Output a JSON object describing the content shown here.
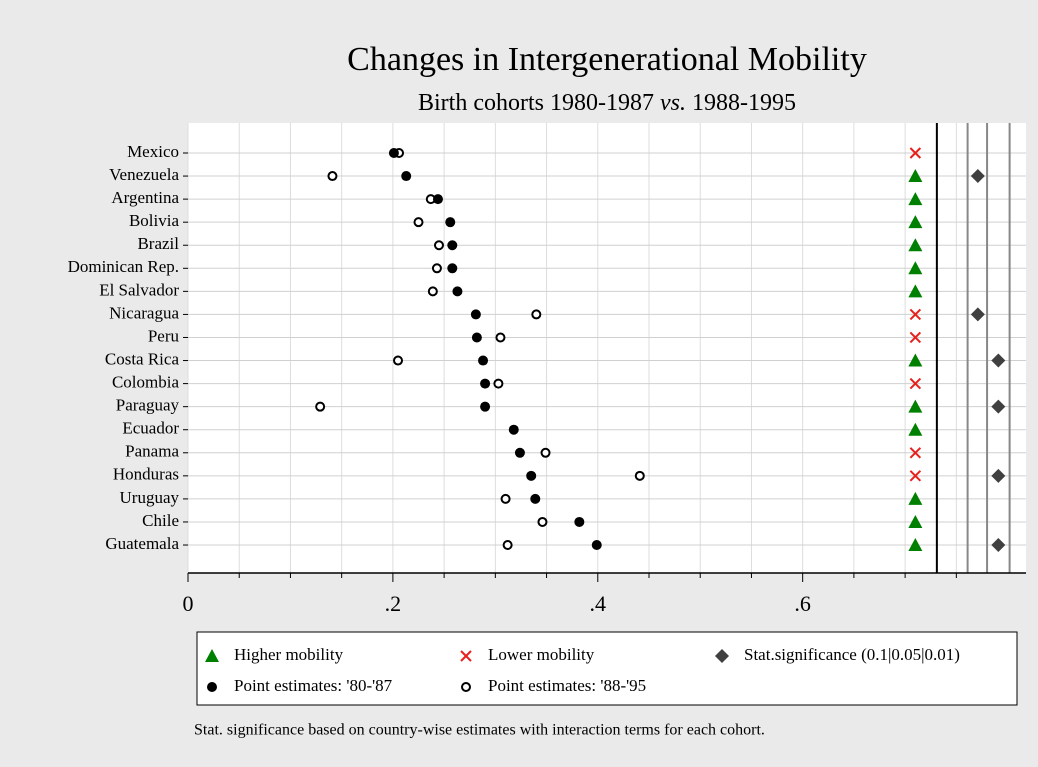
{
  "chart_data": {
    "type": "dot",
    "title": "Changes in Intergenerational Mobility",
    "subtitle": [
      "Birth cohorts 1980-1987 ",
      "vs.",
      " 1988-1995"
    ],
    "note": "Stat. significance based on country-wise estimates with interaction terms for each cohort.",
    "categories": [
      "Mexico",
      "Venezuela",
      "Argentina",
      "Bolivia",
      "Brazil",
      "Dominican Rep.",
      "El Salvador",
      "Nicaragua",
      "Peru",
      "Costa Rica",
      "Colombia",
      "Paraguay",
      "Ecuador",
      "Panama",
      "Honduras",
      "Uruguay",
      "Chile",
      "Guatemala"
    ],
    "series": [
      {
        "name": "Higher mobility",
        "color": "#008000",
        "symbol": "triangle",
        "values": [
          null,
          0.71,
          0.71,
          0.71,
          0.71,
          0.71,
          0.71,
          null,
          null,
          0.71,
          null,
          0.71,
          0.71,
          null,
          null,
          0.71,
          0.71,
          0.71
        ]
      },
      {
        "name": "Lower mobility",
        "color": "#e8201c",
        "symbol": "cross",
        "values": [
          0.71,
          null,
          null,
          null,
          null,
          null,
          null,
          0.71,
          0.71,
          null,
          0.71,
          null,
          null,
          0.71,
          0.71,
          null,
          null,
          null
        ]
      },
      {
        "name": "Stat.significance (0.1|0.05|0.01)",
        "color": "#404040",
        "symbol": "diamond",
        "values": [
          null,
          0.771,
          null,
          null,
          null,
          null,
          null,
          0.771,
          null,
          0.791,
          null,
          0.791,
          null,
          null,
          0.791,
          null,
          null,
          0.791
        ]
      },
      {
        "name": "Point estimates: '80-'87",
        "color": "#000000",
        "symbol": "dot",
        "values": [
          0.201,
          0.213,
          0.244,
          0.256,
          0.258,
          0.258,
          0.263,
          0.281,
          0.282,
          0.288,
          0.29,
          0.29,
          0.318,
          0.324,
          0.335,
          0.339,
          0.382,
          0.399
        ]
      },
      {
        "name": "Point estimates: '88-'95",
        "color": "#000000",
        "symbol": "ring",
        "values": [
          0.206,
          0.141,
          0.237,
          0.225,
          0.245,
          0.243,
          0.239,
          0.34,
          0.305,
          0.205,
          0.303,
          0.129,
          null,
          0.349,
          0.441,
          0.31,
          0.346,
          0.312
        ]
      }
    ],
    "xlim": [
      0,
      0.818
    ],
    "xticks": [
      0,
      {
        "value": 0.2,
        "label": ".2"
      },
      {
        "value": 0.4,
        "label": ".4"
      },
      {
        "value": 0.6,
        "label": ".6"
      }
    ],
    "xminor": [
      0.05,
      0.1,
      0.15,
      0.25,
      0.3,
      0.35,
      0.45,
      0.5,
      0.55,
      0.65,
      0.7,
      0.75
    ],
    "xlines": [
      {
        "value": 0.731,
        "color": "#000000"
      },
      {
        "value": 0.761,
        "color": "#888888"
      },
      {
        "value": 0.78,
        "color": "#888888"
      },
      {
        "value": 0.802,
        "color": "#888888"
      }
    ],
    "grid": true
  }
}
